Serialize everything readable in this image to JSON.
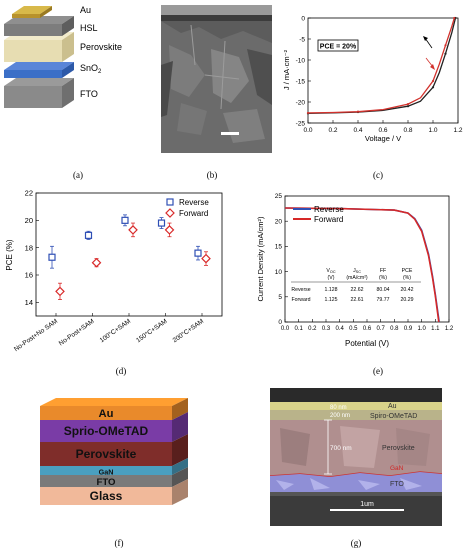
{
  "figure": {
    "a": {
      "caption": "(a)",
      "layers": [
        "Au",
        "HSL",
        "Perovskite",
        "SnO2",
        "FTO"
      ],
      "layer_colors": [
        "#c6a43a",
        "#7d7d7d",
        "#e7ddb2",
        "#3b6fc7",
        "#8a8a8a"
      ]
    },
    "b": {
      "caption": "(b)"
    },
    "c": {
      "caption": "(c)",
      "annotation": "PCE = 20%",
      "chart_data": {
        "type": "line",
        "xlabel": "Voltage / V",
        "ylabel": "J / mA·cm⁻²",
        "xlim": [
          0.0,
          1.2
        ],
        "ylim": [
          -25,
          0
        ],
        "xticks": [
          "0.0",
          "0.2",
          "0.4",
          "0.6",
          "0.8",
          "1.0",
          "1.2"
        ],
        "yticks": [
          "0",
          "-5",
          "-10",
          "-15",
          "-20",
          "-25"
        ],
        "series": [
          {
            "color": "#222222",
            "x": [
              0.0,
              0.2,
              0.4,
              0.6,
              0.8,
              0.9,
              1.0,
              1.05,
              1.1,
              1.15,
              1.18
            ],
            "y": [
              -22.7,
              -22.6,
              -22.4,
              -22.0,
              -21.0,
              -19.8,
              -16.5,
              -13.0,
              -8.5,
              -3.5,
              0.0
            ]
          },
          {
            "color": "#d2322d",
            "x": [
              0.0,
              0.2,
              0.4,
              0.6,
              0.8,
              0.9,
              1.0,
              1.05,
              1.1,
              1.15,
              1.17
            ],
            "y": [
              -22.6,
              -22.5,
              -22.3,
              -21.8,
              -20.5,
              -19.0,
              -15.0,
              -11.0,
              -6.5,
              -2.0,
              0.0
            ]
          }
        ]
      }
    },
    "d": {
      "caption": "(d)",
      "chart_data": {
        "type": "scatter",
        "ylabel": "PCE (%)",
        "ylim": [
          13,
          22
        ],
        "yticks": [
          "14",
          "16",
          "18",
          "20",
          "22"
        ],
        "categories": [
          "No-Post+No SAM",
          "No-Post+SAM",
          "100°C+SAM",
          "150°C+SAM",
          "200°C+SAM"
        ],
        "legend_position": "top-right",
        "series": [
          {
            "name": "Reverse",
            "color": "#2f4fb5",
            "marker": "square",
            "values": [
              17.3,
              18.9,
              20.0,
              19.8,
              17.6
            ],
            "errors": [
              0.8,
              0.3,
              0.4,
              0.4,
              0.5
            ]
          },
          {
            "name": "Forward",
            "color": "#d92b2b",
            "marker": "diamond",
            "values": [
              14.8,
              16.9,
              19.3,
              19.3,
              17.2
            ],
            "errors": [
              0.6,
              0.3,
              0.5,
              0.5,
              0.5
            ]
          }
        ]
      }
    },
    "e": {
      "caption": "(e)",
      "chart_data": {
        "type": "line",
        "xlabel": "Potential (V)",
        "ylabel": "Current Density (mA/cm²)",
        "xlim": [
          0.0,
          1.2
        ],
        "ylim": [
          0,
          25
        ],
        "xticks": [
          "0.0",
          "0.1",
          "0.2",
          "0.3",
          "0.4",
          "0.5",
          "0.6",
          "0.7",
          "0.8",
          "0.9",
          "1.0",
          "1.1",
          "1.2"
        ],
        "yticks": [
          "0",
          "5",
          "10",
          "15",
          "20",
          "25"
        ],
        "legend_position": "top-left",
        "series": [
          {
            "name": "Reverse",
            "color": "#2f4fb5",
            "x": [
              0.0,
              0.4,
              0.8,
              0.9,
              0.95,
              1.0,
              1.05,
              1.08,
              1.1,
              1.128
            ],
            "y": [
              22.62,
              22.5,
              22.2,
              21.6,
              20.5,
              18.2,
              13.5,
              9.0,
              5.5,
              0.0
            ]
          },
          {
            "name": "Forward",
            "color": "#d62828",
            "x": [
              0.0,
              0.4,
              0.8,
              0.9,
              0.95,
              1.0,
              1.05,
              1.08,
              1.1,
              1.125
            ],
            "y": [
              22.61,
              22.5,
              22.2,
              21.6,
              20.4,
              18.0,
              13.2,
              8.7,
              5.2,
              0.0
            ]
          }
        ],
        "table": {
          "headers": [
            "",
            "V_OC (V)",
            "J_SC (mA/cm²)",
            "FF (%)",
            "PCE (%)"
          ],
          "rows": [
            [
              "Reverse",
              "1.128",
              "22.62",
              "80.04",
              "20.42"
            ],
            [
              "Forward",
              "1.125",
              "22.61",
              "79.77",
              "20.29"
            ]
          ]
        }
      }
    },
    "f": {
      "caption": "(f)",
      "layers": [
        {
          "label": "Au",
          "color": "#e98a2b"
        },
        {
          "label": "Sprio-OMeTAD",
          "color": "#7a3ca6"
        },
        {
          "label": "Perovskite",
          "color": "#7f2d2a"
        },
        {
          "label": "GaN",
          "color": "#4a9fc0"
        },
        {
          "label": "FTO",
          "color": "#7a7a7a"
        },
        {
          "label": "Glass",
          "color": "#f1b99a"
        }
      ]
    },
    "g": {
      "caption": "(g)",
      "labels": {
        "t80": "80 nm",
        "t200": "200 nm",
        "t700": "700 nm",
        "au": "Au",
        "spiro": "Spiro-OMeTAD",
        "perovskite": "Perovskite",
        "gan": "GaN",
        "fto": "FTO",
        "scale": "1um"
      }
    }
  }
}
